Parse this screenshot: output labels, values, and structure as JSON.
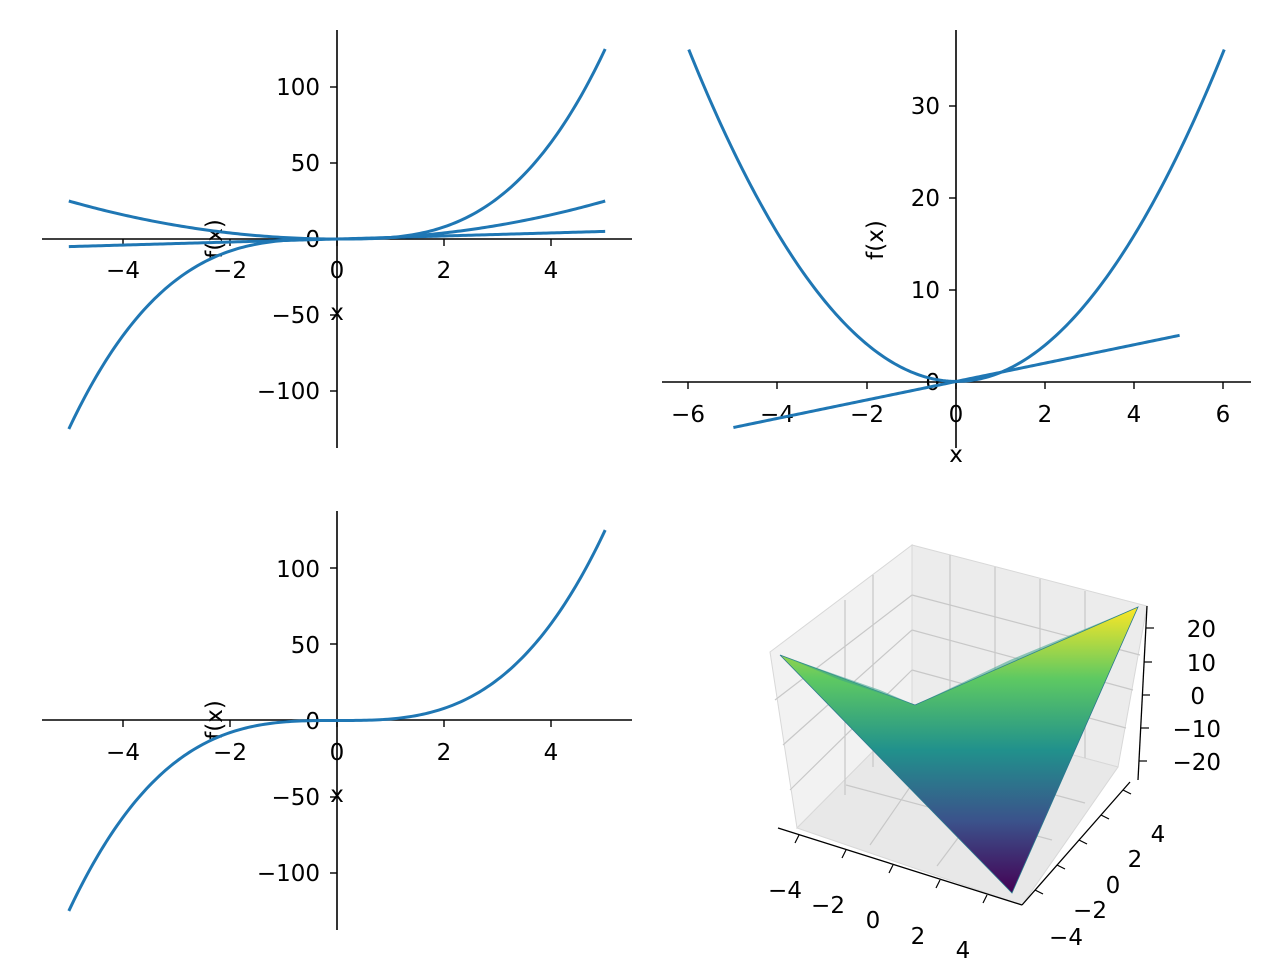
{
  "chart_data": [
    {
      "type": "line",
      "xlabel": "x",
      "ylabel": "f(x)",
      "xlim": [
        -5.5,
        5.5
      ],
      "ylim": [
        -137.5,
        137.5
      ],
      "x_ticks": [
        "−4",
        "−2",
        "0",
        "2",
        "4"
      ],
      "y_ticks": [
        "−100",
        "−50",
        "0",
        "50",
        "100"
      ],
      "series": [
        {
          "expr": "x",
          "x_range": [
            -5,
            5
          ],
          "points": [
            [
              -5,
              -5
            ],
            [
              0,
              0
            ],
            [
              5,
              5
            ]
          ]
        },
        {
          "expr": "x^2",
          "x_range": [
            -5,
            5
          ],
          "points": [
            [
              -5,
              25
            ],
            [
              0,
              0
            ],
            [
              5,
              25
            ]
          ]
        },
        {
          "expr": "x^3",
          "x_range": [
            -5,
            5
          ],
          "points": [
            [
              -5,
              -125
            ],
            [
              0,
              0
            ],
            [
              5,
              125
            ]
          ]
        }
      ],
      "color": "#1f77b4"
    },
    {
      "type": "line",
      "xlabel": "x",
      "ylabel": "f(x)",
      "xlim": [
        -6.6,
        6.6
      ],
      "ylim": [
        -8.2,
        37.8
      ],
      "x_ticks": [
        "−6",
        "−4",
        "−2",
        "0",
        "2",
        "4",
        "6"
      ],
      "y_ticks": [
        "0",
        "10",
        "20",
        "30"
      ],
      "series": [
        {
          "expr": "x^2",
          "x_range": [
            -6,
            6
          ],
          "points": [
            [
              -6,
              36
            ],
            [
              0,
              0
            ],
            [
              6,
              36
            ]
          ]
        },
        {
          "expr": "x",
          "x_range": [
            -5,
            5
          ],
          "points": [
            [
              -5,
              -5
            ],
            [
              0,
              0
            ],
            [
              5,
              5
            ]
          ]
        }
      ],
      "color": "#1f77b4"
    },
    {
      "type": "line",
      "xlabel": "x",
      "ylabel": "f(x)",
      "xlim": [
        -5.5,
        5.5
      ],
      "ylim": [
        -137.5,
        137.5
      ],
      "x_ticks": [
        "−4",
        "−2",
        "0",
        "2",
        "4"
      ],
      "y_ticks": [
        "−100",
        "−50",
        "0",
        "50",
        "100"
      ],
      "series": [
        {
          "expr": "x^3",
          "x_range": [
            -5,
            5
          ],
          "points": [
            [
              -5,
              -125
            ],
            [
              0,
              0
            ],
            [
              5,
              125
            ]
          ]
        }
      ],
      "color": "#1f77b4"
    },
    {
      "type": "surface",
      "expr": "x*y",
      "x_range": [
        -5,
        5
      ],
      "y_range": [
        -5,
        5
      ],
      "zlim": [
        -25,
        25
      ],
      "colormap": "viridis",
      "x_ticks": [
        "−4",
        "−2",
        "0",
        "2",
        "4"
      ],
      "y_ticks": [
        "−4",
        "−2",
        "0",
        "2",
        "4"
      ],
      "z_ticks": [
        "20",
        "10",
        "0",
        "−10",
        "−20"
      ]
    }
  ]
}
